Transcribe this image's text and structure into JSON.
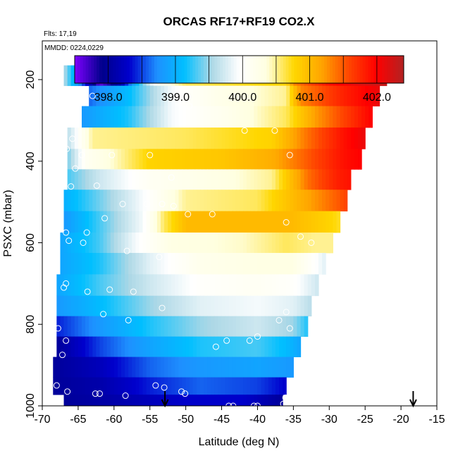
{
  "chart_data": {
    "type": "heatmap",
    "title": "ORCAS RF17+RF19 CO2.X",
    "subtitle_flights": "Flts: 17,19",
    "subtitle_dates": "MMDD: 0224,0229",
    "xlabel": "Latitude (deg N)",
    "ylabel": "PSXC (mbar)",
    "xlim": [
      -70,
      -15
    ],
    "ylim": [
      1000,
      100
    ],
    "x_ticks": [
      -70,
      -65,
      -60,
      -55,
      -50,
      -45,
      -40,
      -35,
      -30,
      -25,
      -20,
      -15
    ],
    "x_tick_labels": [
      "-70",
      "-65",
      "-60",
      "-55",
      "-50",
      "-45",
      "-40",
      "-35",
      "-30",
      "-25",
      "-20",
      "-15"
    ],
    "y_ticks": [
      200,
      400,
      600,
      800,
      1000
    ],
    "y_tick_labels": [
      "200",
      "400",
      "600",
      "800",
      "1000"
    ],
    "colorbar": {
      "range": [
        397.5,
        402.4
      ],
      "ticks": [
        398.0,
        399.0,
        400.0,
        401.0,
        402.0
      ],
      "tick_labels": [
        "398.0",
        "399.0",
        "400.0",
        "401.0",
        "402.0"
      ],
      "colors": [
        "#7f00ff",
        "#00008b",
        "#0000cd",
        "#1e90ff",
        "#00bfff",
        "#add8e6",
        "#ffffff",
        "#ffffe0",
        "#ffd700",
        "#ffa500",
        "#ff4500",
        "#ff0000",
        "#b22222"
      ]
    },
    "levels": [
      {
        "p": 190,
        "x0": -67.0,
        "x1": -22.0,
        "stops": [
          [
            -67,
            399.6
          ],
          [
            -62,
            397.6
          ],
          [
            -59,
            398.1
          ],
          [
            -56,
            399.4
          ],
          [
            -54,
            400.1
          ],
          [
            -50,
            400.6
          ],
          [
            -36,
            400.8
          ],
          [
            -35,
            401.3
          ],
          [
            -30,
            401.9
          ],
          [
            -25,
            402.2
          ],
          [
            -22,
            402.3
          ]
        ]
      },
      {
        "p": 240,
        "x0": -63.5,
        "x1": -23.0,
        "stops": [
          [
            -63.5,
            398.6
          ],
          [
            -58,
            399.1
          ],
          [
            -52,
            399.9
          ],
          [
            -46,
            400.2
          ],
          [
            -36,
            400.5
          ],
          [
            -34,
            401.3
          ],
          [
            -28,
            401.8
          ],
          [
            -23,
            402.1
          ]
        ]
      },
      {
        "p": 290,
        "x0": -64.5,
        "x1": -24.0,
        "stops": [
          [
            -64.5,
            398.8
          ],
          [
            -58,
            399.2
          ],
          [
            -52,
            399.9
          ],
          [
            -44,
            400.2
          ],
          [
            -36,
            400.6
          ],
          [
            -32,
            401.2
          ],
          [
            -27,
            401.7
          ],
          [
            -24,
            402.0
          ]
        ]
      },
      {
        "p": 345,
        "x0": -66.5,
        "x1": -25.0,
        "stops": [
          [
            -66.5,
            399.6
          ],
          [
            -63,
            400.5
          ],
          [
            -50,
            400.6
          ],
          [
            -38,
            400.8
          ],
          [
            -33,
            401.4
          ],
          [
            -28,
            401.9
          ],
          [
            -25,
            402.1
          ]
        ]
      },
      {
        "p": 395,
        "x0": -66.5,
        "x1": -25.5,
        "stops": [
          [
            -66.5,
            399.4
          ],
          [
            -64,
            400.1
          ],
          [
            -60,
            400.4
          ],
          [
            -55,
            400.8
          ],
          [
            -45,
            400.9
          ],
          [
            -38,
            401.1
          ],
          [
            -33,
            401.5
          ],
          [
            -28,
            401.9
          ],
          [
            -25.5,
            402.0
          ]
        ]
      },
      {
        "p": 445,
        "x0": -66.5,
        "x1": -27.0,
        "stops": [
          [
            -66.5,
            399.3
          ],
          [
            -62,
            399.7
          ],
          [
            -55,
            400.1
          ],
          [
            -45,
            400.3
          ],
          [
            -38,
            400.5
          ],
          [
            -33,
            401.4
          ],
          [
            -29,
            401.8
          ],
          [
            -27,
            401.9
          ]
        ]
      },
      {
        "p": 495,
        "x0": -67.0,
        "x1": -27.5,
        "stops": [
          [
            -67,
            399.0
          ],
          [
            -62,
            399.4
          ],
          [
            -55,
            400.0
          ],
          [
            -50,
            400.5
          ],
          [
            -40,
            400.6
          ],
          [
            -35,
            401.0
          ],
          [
            -30,
            401.4
          ],
          [
            -27.5,
            401.6
          ]
        ]
      },
      {
        "p": 550,
        "x0": -67.0,
        "x1": -28.5,
        "stops": [
          [
            -67,
            398.8
          ],
          [
            -62,
            399.3
          ],
          [
            -56,
            399.9
          ],
          [
            -53,
            400.6
          ],
          [
            -50,
            401.0
          ],
          [
            -40,
            401.0
          ],
          [
            -35,
            401.0
          ],
          [
            -30,
            400.8
          ],
          [
            -28.5,
            400.7
          ]
        ]
      },
      {
        "p": 600,
        "x0": -67.5,
        "x1": -29.5,
        "stops": [
          [
            -67.5,
            398.9
          ],
          [
            -62,
            399.3
          ],
          [
            -57,
            399.9
          ],
          [
            -52,
            400.3
          ],
          [
            -42,
            400.4
          ],
          [
            -36,
            400.6
          ],
          [
            -32,
            400.5
          ],
          [
            -29.5,
            400.5
          ]
        ]
      },
      {
        "p": 650,
        "x0": -67.5,
        "x1": -30.5,
        "stops": [
          [
            -67.5,
            398.9
          ],
          [
            -62,
            399.2
          ],
          [
            -55,
            399.8
          ],
          [
            -48,
            400.2
          ],
          [
            -40,
            400.3
          ],
          [
            -35,
            400.3
          ],
          [
            -30.5,
            399.8
          ]
        ]
      },
      {
        "p": 705,
        "x0": -68.0,
        "x1": -31.5,
        "stops": [
          [
            -68,
            398.9
          ],
          [
            -62,
            399.3
          ],
          [
            -55,
            399.7
          ],
          [
            -48,
            400.0
          ],
          [
            -40,
            400.1
          ],
          [
            -35,
            400.0
          ],
          [
            -31.5,
            399.7
          ]
        ]
      },
      {
        "p": 755,
        "x0": -68.0,
        "x1": -32.5,
        "stops": [
          [
            -68,
            398.8
          ],
          [
            -62,
            399.1
          ],
          [
            -55,
            399.5
          ],
          [
            -48,
            399.8
          ],
          [
            -40,
            399.9
          ],
          [
            -35,
            399.8
          ],
          [
            -32.5,
            399.6
          ]
        ]
      },
      {
        "p": 805,
        "x0": -68.0,
        "x1": -33.0,
        "stops": [
          [
            -68,
            398.4
          ],
          [
            -62,
            398.8
          ],
          [
            -55,
            399.2
          ],
          [
            -48,
            399.5
          ],
          [
            -40,
            399.7
          ],
          [
            -35,
            399.5
          ],
          [
            -33,
            399.2
          ]
        ]
      },
      {
        "p": 855,
        "x0": -68.0,
        "x1": -34.0,
        "stops": [
          [
            -68,
            398.0
          ],
          [
            -62,
            398.5
          ],
          [
            -55,
            398.9
          ],
          [
            -48,
            399.2
          ],
          [
            -40,
            399.3
          ],
          [
            -36,
            399.1
          ],
          [
            -34,
            398.9
          ]
        ]
      },
      {
        "p": 905,
        "x0": -68.5,
        "x1": -35.0,
        "stops": [
          [
            -68.5,
            398.0
          ],
          [
            -62,
            398.2
          ],
          [
            -55,
            398.6
          ],
          [
            -48,
            398.8
          ],
          [
            -40,
            398.9
          ],
          [
            -35,
            398.8
          ]
        ]
      },
      {
        "p": 955,
        "x0": -68.5,
        "x1": -36.0,
        "stops": [
          [
            -68.5,
            398.0
          ],
          [
            -62,
            398.1
          ],
          [
            -55,
            398.4
          ],
          [
            -48,
            398.6
          ],
          [
            -40,
            398.5
          ],
          [
            -36,
            398.3
          ]
        ]
      },
      {
        "p": 990,
        "x0": -67.0,
        "x1": -36.5,
        "stops": [
          [
            -67,
            398.0
          ],
          [
            -60,
            398.1
          ],
          [
            -50,
            398.3
          ],
          [
            -42,
            398.3
          ],
          [
            -36.5,
            398.0
          ]
        ]
      }
    ],
    "points": [
      [
        -61.8,
        185
      ],
      [
        -59.3,
        185
      ],
      [
        -56.3,
        185
      ],
      [
        -54.0,
        185
      ],
      [
        -52.6,
        185
      ],
      [
        -50.5,
        185
      ],
      [
        -49.2,
        185
      ],
      [
        -48.0,
        185
      ],
      [
        -47.0,
        185
      ],
      [
        -46.0,
        185
      ],
      [
        -35.2,
        185
      ],
      [
        -34.8,
        185
      ],
      [
        -34.4,
        185
      ],
      [
        -34.0,
        185
      ],
      [
        -33.5,
        185
      ],
      [
        -32.8,
        185
      ],
      [
        -31.2,
        185
      ],
      [
        -30.0,
        185
      ],
      [
        -29.0,
        185
      ],
      [
        -28.0,
        185
      ],
      [
        -27.0,
        185
      ],
      [
        -26.0,
        185
      ],
      [
        -25.0,
        185
      ],
      [
        -24.0,
        185
      ],
      [
        -23.4,
        185
      ],
      [
        -22.6,
        185
      ],
      [
        -21.8,
        185
      ],
      [
        -63.0,
        240
      ],
      [
        -49.5,
        265
      ],
      [
        -41.8,
        325
      ],
      [
        -37.6,
        325
      ],
      [
        -65.8,
        345
      ],
      [
        -66.6,
        370
      ],
      [
        -64.5,
        385
      ],
      [
        -60.3,
        385
      ],
      [
        -55.0,
        385
      ],
      [
        -35.5,
        385
      ],
      [
        -65.4,
        418
      ],
      [
        -62.4,
        460
      ],
      [
        -58.8,
        505
      ],
      [
        -55.4,
        505
      ],
      [
        -53.3,
        505
      ],
      [
        -51.7,
        510
      ],
      [
        -66.0,
        462
      ],
      [
        -68.0,
        510
      ],
      [
        -66.7,
        575
      ],
      [
        -66.3,
        595
      ],
      [
        -64.3,
        600
      ],
      [
        -63.8,
        575
      ],
      [
        -61.3,
        540
      ],
      [
        -58.2,
        620
      ],
      [
        -52.0,
        440
      ],
      [
        -49.7,
        530
      ],
      [
        -46.3,
        530
      ],
      [
        -36.0,
        550
      ],
      [
        -32.5,
        600
      ],
      [
        -34.0,
        585
      ],
      [
        -53.7,
        635
      ],
      [
        -66.7,
        700
      ],
      [
        -67.0,
        710
      ],
      [
        -63.7,
        720
      ],
      [
        -60.6,
        715
      ],
      [
        -57.3,
        720
      ],
      [
        -53.3,
        760
      ],
      [
        -61.5,
        775
      ],
      [
        -58.0,
        790
      ],
      [
        -67.8,
        810
      ],
      [
        -66.7,
        840
      ],
      [
        -67.2,
        875
      ],
      [
        -45.8,
        855
      ],
      [
        -44.3,
        840
      ],
      [
        -41.1,
        840
      ],
      [
        -40.0,
        830
      ],
      [
        -37.0,
        790
      ],
      [
        -36.0,
        770
      ],
      [
        -35.5,
        810
      ],
      [
        -69.0,
        935
      ],
      [
        -68.0,
        950
      ],
      [
        -66.5,
        965
      ],
      [
        -62.6,
        970
      ],
      [
        -62.0,
        970
      ],
      [
        -58.4,
        975
      ],
      [
        -54.2,
        950
      ],
      [
        -53.0,
        955
      ],
      [
        -50.6,
        965
      ],
      [
        -50.1,
        970
      ],
      [
        -44.0,
        1000
      ],
      [
        -43.4,
        1000
      ],
      [
        -40.5,
        1000
      ],
      [
        -40.0,
        1000
      ],
      [
        -36.4,
        995
      ],
      [
        -36.1,
        980
      ]
    ],
    "arrows": [
      -52.9,
      -18.3
    ]
  }
}
